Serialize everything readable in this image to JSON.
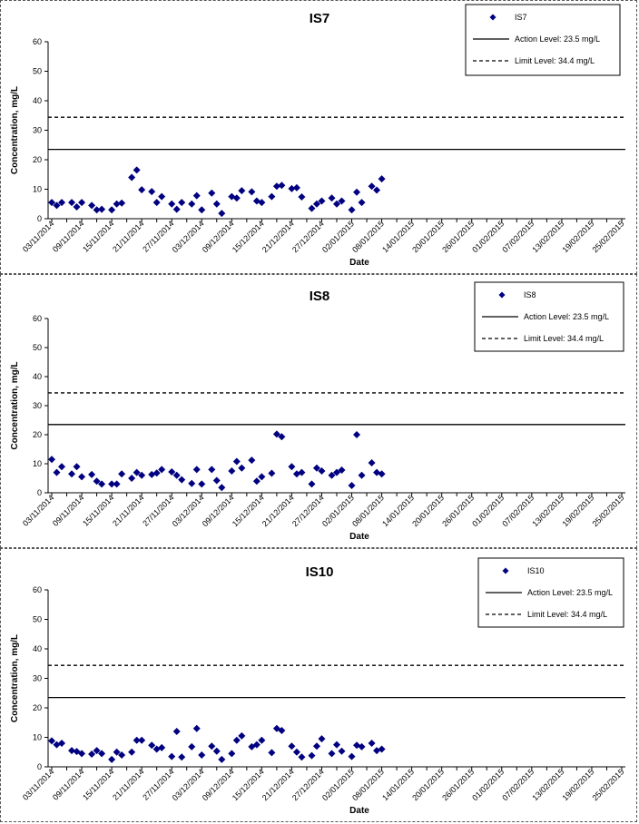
{
  "dates": [
    "03/11/2014",
    "06/11/2014",
    "09/11/2014",
    "12/11/2014",
    "15/11/2014",
    "18/11/2014",
    "21/11/2014",
    "24/11/2014",
    "27/11/2014",
    "30/11/2014",
    "03/12/2014",
    "06/12/2014",
    "09/12/2014",
    "12/12/2014",
    "15/12/2014",
    "18/12/2014",
    "21/12/2014",
    "24/12/2014",
    "27/12/2014",
    "30/12/2014",
    "02/01/2015",
    "05/01/2015",
    "08/01/2015",
    "11/01/2015",
    "14/01/2015",
    "17/01/2015",
    "20/01/2015",
    "23/01/2015",
    "26/01/2015",
    "29/01/2015",
    "01/02/2015",
    "04/02/2015",
    "07/02/2015",
    "10/02/2015",
    "13/02/2015",
    "16/02/2015",
    "19/02/2015",
    "22/02/2015",
    "25/02/2015"
  ],
  "chart_data": [
    {
      "type": "scatter",
      "title": "IS7",
      "xlabel": "Date",
      "ylabel": "Concentration, mg/L",
      "ylim": [
        0,
        60
      ],
      "yticks": [
        0,
        10,
        20,
        30,
        40,
        50,
        60
      ],
      "grid": false,
      "legend_position": "top-right",
      "series": [
        {
          "name": "IS7",
          "marker": "diamond",
          "color": "#000080",
          "points": [
            [
              "03/11/2014",
              5.5
            ],
            [
              "04/11/2014",
              4.5
            ],
            [
              "05/11/2014",
              5.5
            ],
            [
              "07/11/2014",
              5.5
            ],
            [
              "08/11/2014",
              4
            ],
            [
              "09/11/2014",
              5.5
            ],
            [
              "11/11/2014",
              4.5
            ],
            [
              "12/11/2014",
              3
            ],
            [
              "13/11/2014",
              3.2
            ],
            [
              "15/11/2014",
              3
            ],
            [
              "16/11/2014",
              5
            ],
            [
              "17/11/2014",
              5.3
            ],
            [
              "19/11/2014",
              14
            ],
            [
              "20/11/2014",
              16.5
            ],
            [
              "21/11/2014",
              9.8
            ],
            [
              "23/11/2014",
              9.2
            ],
            [
              "24/11/2014",
              5.5
            ],
            [
              "25/11/2014",
              7.5
            ],
            [
              "27/11/2014",
              5
            ],
            [
              "28/11/2014",
              3.2
            ],
            [
              "29/11/2014",
              5.5
            ],
            [
              "01/12/2014",
              5
            ],
            [
              "02/12/2014",
              7.8
            ],
            [
              "03/12/2014",
              3
            ],
            [
              "05/12/2014",
              8.7
            ],
            [
              "06/12/2014",
              5
            ],
            [
              "07/12/2014",
              1.8
            ],
            [
              "09/12/2014",
              7.5
            ],
            [
              "10/12/2014",
              7
            ],
            [
              "11/12/2014",
              9.5
            ],
            [
              "13/12/2014",
              9.1
            ],
            [
              "14/12/2014",
              6
            ],
            [
              "15/12/2014",
              5.5
            ],
            [
              "17/12/2014",
              7.5
            ],
            [
              "18/12/2014",
              11
            ],
            [
              "19/12/2014",
              11.3
            ],
            [
              "21/12/2014",
              10.2
            ],
            [
              "22/12/2014",
              10.5
            ],
            [
              "23/12/2014",
              7.4
            ],
            [
              "25/12/2014",
              3.5
            ],
            [
              "26/12/2014",
              5
            ],
            [
              "27/12/2014",
              6
            ],
            [
              "29/12/2014",
              7
            ],
            [
              "30/12/2014",
              5
            ],
            [
              "31/12/2014",
              6
            ],
            [
              "02/01/2015",
              3
            ],
            [
              "03/01/2015",
              9
            ],
            [
              "04/01/2015",
              5.5
            ],
            [
              "06/01/2015",
              11
            ],
            [
              "07/01/2015",
              9.7
            ],
            [
              "08/01/2015",
              13.5
            ]
          ]
        },
        {
          "name": "Action Level: 23.5 mg/L",
          "type": "hline",
          "value": 23.5,
          "style": "solid"
        },
        {
          "name": "Limit Level: 34.4 mg/L",
          "type": "hline",
          "value": 34.4,
          "style": "dashed"
        }
      ]
    },
    {
      "type": "scatter",
      "title": "IS8",
      "xlabel": "Date",
      "ylabel": "Concentration, mg/L",
      "ylim": [
        0,
        60
      ],
      "yticks": [
        0,
        10,
        20,
        30,
        40,
        50,
        60
      ],
      "grid": false,
      "legend_position": "top-right",
      "series": [
        {
          "name": "IS8",
          "marker": "diamond",
          "color": "#000080",
          "points": [
            [
              "03/11/2014",
              11.5
            ],
            [
              "04/11/2014",
              7
            ],
            [
              "05/11/2014",
              9
            ],
            [
              "07/11/2014",
              6.5
            ],
            [
              "08/11/2014",
              9
            ],
            [
              "09/11/2014",
              5.5
            ],
            [
              "11/11/2014",
              6.3
            ],
            [
              "12/11/2014",
              4
            ],
            [
              "13/11/2014",
              3
            ],
            [
              "15/11/2014",
              3
            ],
            [
              "16/11/2014",
              3
            ],
            [
              "17/11/2014",
              6.5
            ],
            [
              "19/11/2014",
              5
            ],
            [
              "20/11/2014",
              7
            ],
            [
              "21/11/2014",
              6
            ],
            [
              "23/11/2014",
              6.3
            ],
            [
              "24/11/2014",
              6.8
            ],
            [
              "25/11/2014",
              8
            ],
            [
              "27/11/2014",
              7.2
            ],
            [
              "28/11/2014",
              6
            ],
            [
              "29/11/2014",
              4.5
            ],
            [
              "01/12/2014",
              3.2
            ],
            [
              "02/12/2014",
              8
            ],
            [
              "03/12/2014",
              3
            ],
            [
              "05/12/2014",
              8
            ],
            [
              "06/12/2014",
              4.2
            ],
            [
              "07/12/2014",
              1.8
            ],
            [
              "09/12/2014",
              7.5
            ],
            [
              "10/12/2014",
              10.8
            ],
            [
              "11/12/2014",
              8.5
            ],
            [
              "13/12/2014",
              11.2
            ],
            [
              "14/12/2014",
              4
            ],
            [
              "15/12/2014",
              5.5
            ],
            [
              "17/12/2014",
              6.7
            ],
            [
              "18/12/2014",
              20.2
            ],
            [
              "19/12/2014",
              19.3
            ],
            [
              "21/12/2014",
              9
            ],
            [
              "22/12/2014",
              6.5
            ],
            [
              "23/12/2014",
              7
            ],
            [
              "25/12/2014",
              3
            ],
            [
              "26/12/2014",
              8.5
            ],
            [
              "27/12/2014",
              7.5
            ],
            [
              "29/12/2014",
              6
            ],
            [
              "30/12/2014",
              7
            ],
            [
              "31/12/2014",
              7.8
            ],
            [
              "02/01/2015",
              2.5
            ],
            [
              "03/01/2015",
              20
            ],
            [
              "04/01/2015",
              6
            ],
            [
              "06/01/2015",
              10.3
            ],
            [
              "07/01/2015",
              7
            ],
            [
              "08/01/2015",
              6.5
            ]
          ]
        },
        {
          "name": "Action Level: 23.5 mg/L",
          "type": "hline",
          "value": 23.5,
          "style": "solid"
        },
        {
          "name": "Limit Level: 34.4 mg/L",
          "type": "hline",
          "value": 34.4,
          "style": "dashed"
        }
      ]
    },
    {
      "type": "scatter",
      "title": "IS10",
      "xlabel": "Date",
      "ylabel": "Concentration, mg/L",
      "ylim": [
        0,
        60
      ],
      "yticks": [
        0,
        10,
        20,
        30,
        40,
        50,
        60
      ],
      "grid": false,
      "legend_position": "top-right",
      "series": [
        {
          "name": "IS10",
          "marker": "diamond",
          "color": "#000080",
          "points": [
            [
              "03/11/2014",
              8.8
            ],
            [
              "04/11/2014",
              7.5
            ],
            [
              "05/11/2014",
              8
            ],
            [
              "07/11/2014",
              5.5
            ],
            [
              "08/11/2014",
              5.2
            ],
            [
              "09/11/2014",
              4.5
            ],
            [
              "11/11/2014",
              4.3
            ],
            [
              "12/11/2014",
              5.5
            ],
            [
              "13/11/2014",
              4.5
            ],
            [
              "15/11/2014",
              2.5
            ],
            [
              "16/11/2014",
              5
            ],
            [
              "17/11/2014",
              4
            ],
            [
              "19/11/2014",
              5
            ],
            [
              "20/11/2014",
              9
            ],
            [
              "21/11/2014",
              9
            ],
            [
              "23/11/2014",
              7.3
            ],
            [
              "24/11/2014",
              6
            ],
            [
              "25/11/2014",
              6.5
            ],
            [
              "27/11/2014",
              3.5
            ],
            [
              "28/11/2014",
              12
            ],
            [
              "29/11/2014",
              3.3
            ],
            [
              "01/12/2014",
              6.8
            ],
            [
              "02/12/2014",
              13
            ],
            [
              "03/12/2014",
              4
            ],
            [
              "05/12/2014",
              7
            ],
            [
              "06/12/2014",
              5.3
            ],
            [
              "07/12/2014",
              2.5
            ],
            [
              "09/12/2014",
              4.5
            ],
            [
              "10/12/2014",
              9
            ],
            [
              "11/12/2014",
              10.5
            ],
            [
              "13/12/2014",
              6.8
            ],
            [
              "14/12/2014",
              7.5
            ],
            [
              "15/12/2014",
              9
            ],
            [
              "17/12/2014",
              4.8
            ],
            [
              "18/12/2014",
              13
            ],
            [
              "19/12/2014",
              12.3
            ],
            [
              "21/12/2014",
              7
            ],
            [
              "22/12/2014",
              5
            ],
            [
              "23/12/2014",
              3.3
            ],
            [
              "25/12/2014",
              3.8
            ],
            [
              "26/12/2014",
              7
            ],
            [
              "27/12/2014",
              9.5
            ],
            [
              "29/12/2014",
              4.5
            ],
            [
              "30/12/2014",
              7.5
            ],
            [
              "31/12/2014",
              5.3
            ],
            [
              "02/01/2015",
              3.5
            ],
            [
              "03/01/2015",
              7.3
            ],
            [
              "04/01/2015",
              6.8
            ],
            [
              "06/01/2015",
              8
            ],
            [
              "07/01/2015",
              5.5
            ],
            [
              "08/01/2015",
              6
            ]
          ]
        },
        {
          "name": "Action Level: 23.5 mg/L",
          "type": "hline",
          "value": 23.5,
          "style": "solid"
        },
        {
          "name": "Limit Level: 34.4 mg/L",
          "type": "hline",
          "value": 34.4,
          "style": "dashed"
        }
      ]
    }
  ]
}
